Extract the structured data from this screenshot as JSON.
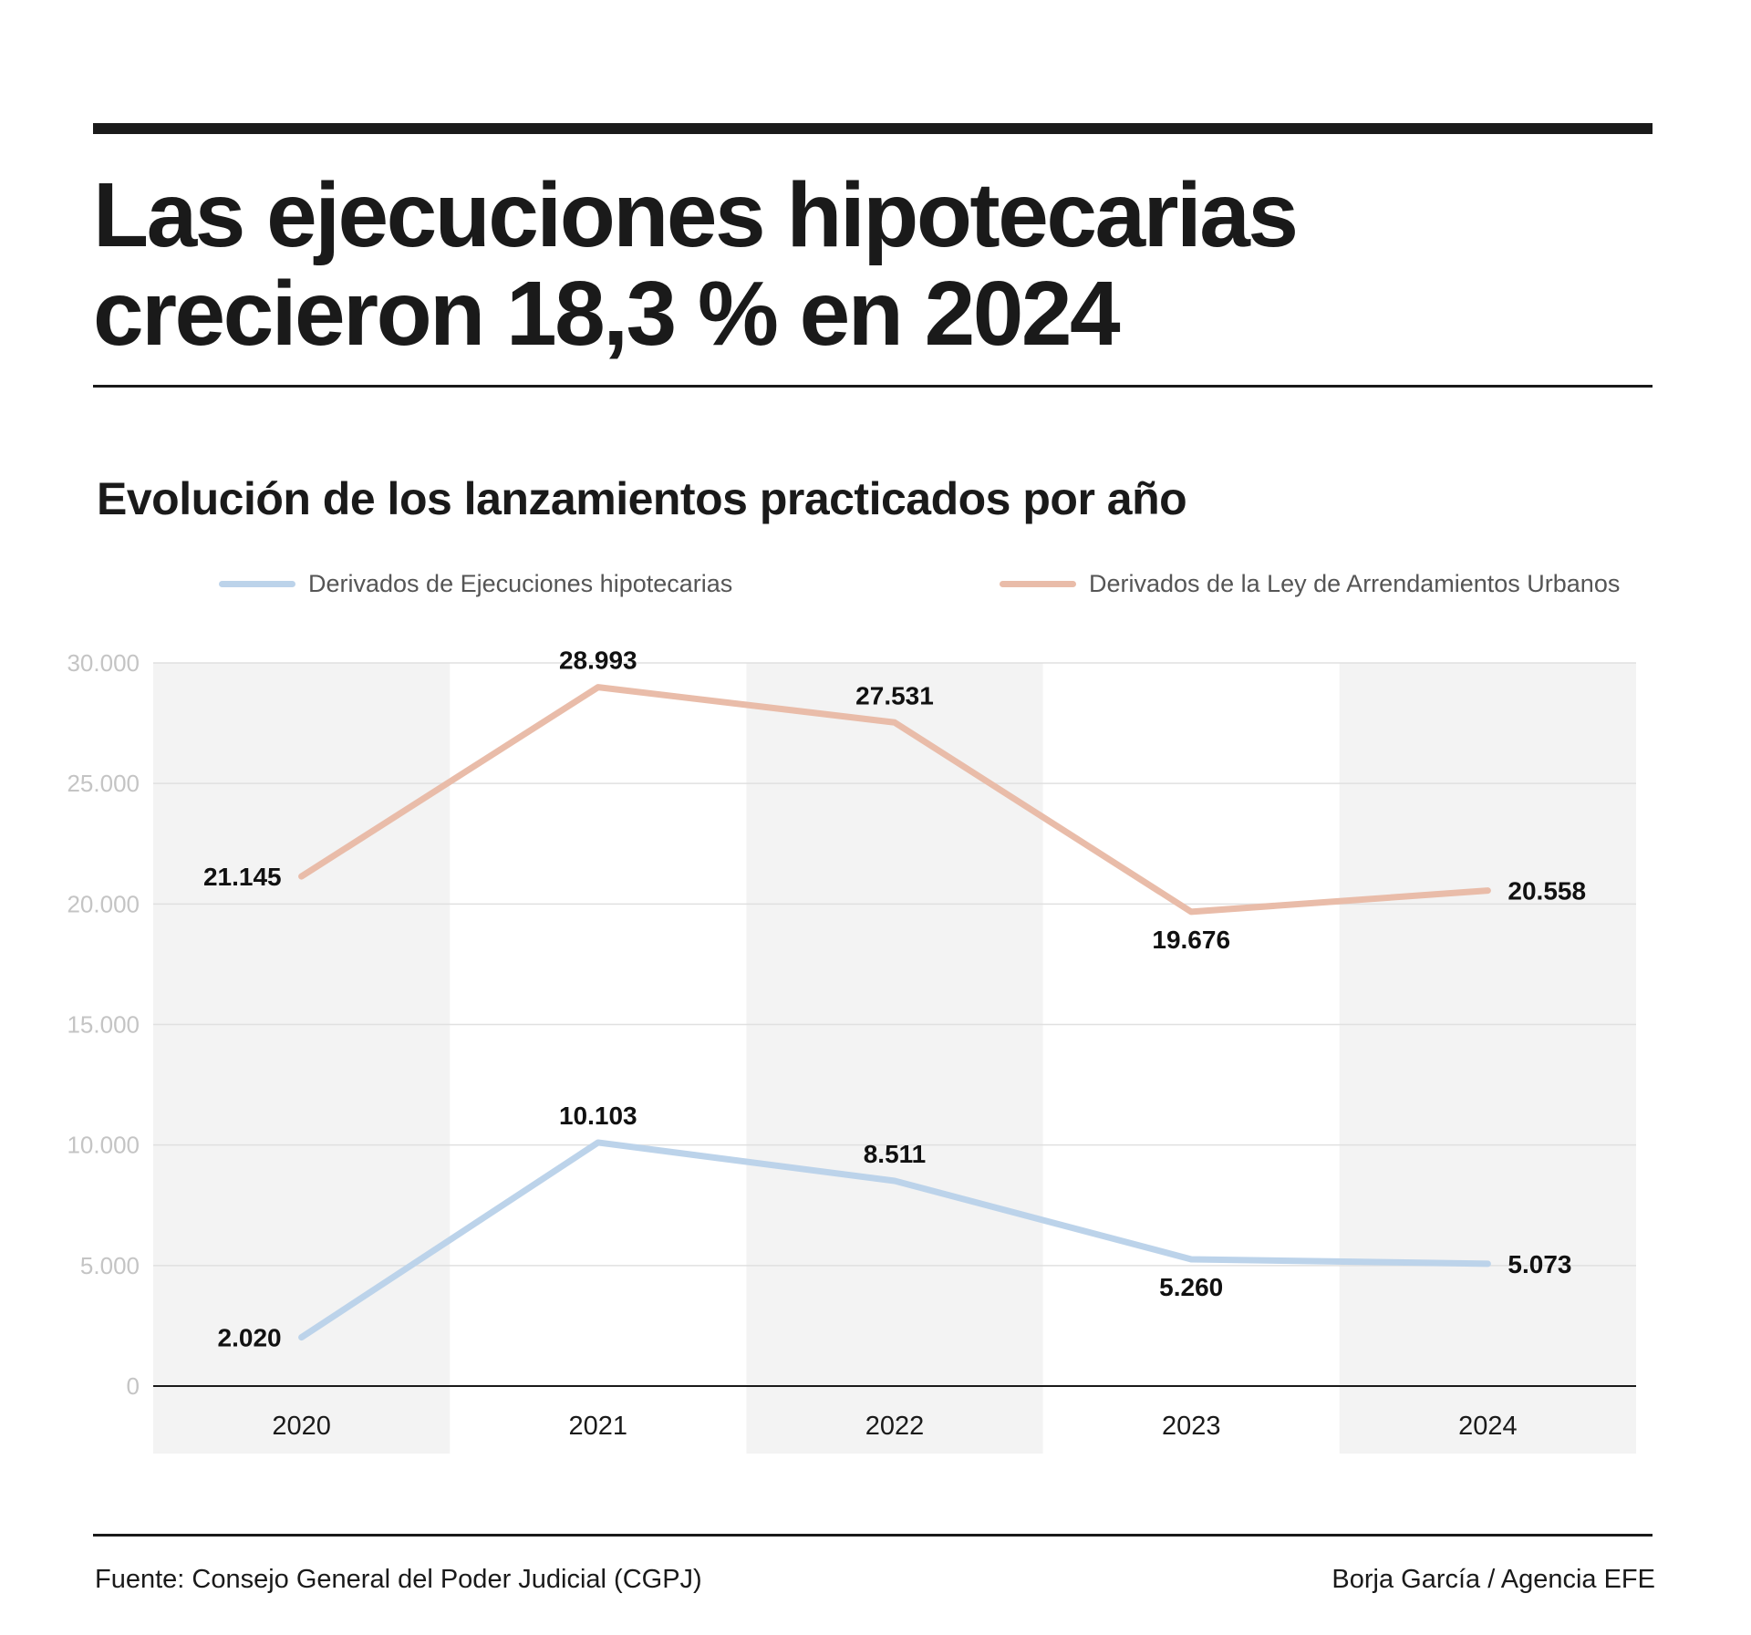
{
  "header": {
    "title_line1": "Las ejecuciones hipotecarias",
    "title_line2": "crecieron 18,3 % en 2024"
  },
  "chart_data": {
    "type": "line",
    "title": "Las ejecuciones hipotecarias crecieron 18,3 % en 2024",
    "subtitle": "Evolución de los lanzamientos practicados por año",
    "xlabel": "",
    "ylabel": "",
    "categories": [
      "2020",
      "2021",
      "2022",
      "2023",
      "2024"
    ],
    "series": [
      {
        "name": "Derivados de Ejecuciones hipotecarias",
        "color": "#bcd3ea",
        "values": [
          2020,
          10103,
          8511,
          5260,
          5073
        ],
        "labels": [
          "2.020",
          "10.103",
          "8.511",
          "5.260",
          "5.073"
        ],
        "label_positions": [
          "left",
          "above",
          "above",
          "below",
          "right"
        ]
      },
      {
        "name": "Derivados de la Ley de Arrendamientos Urbanos",
        "color": "#e9bca9",
        "values": [
          21145,
          28993,
          27531,
          19676,
          20558
        ],
        "labels": [
          "21.145",
          "28.993",
          "27.531",
          "19.676",
          "20.558"
        ],
        "label_positions": [
          "left",
          "above",
          "above",
          "below",
          "right"
        ]
      }
    ],
    "ylim": [
      0,
      30000
    ],
    "yticks": [
      0,
      5000,
      10000,
      15000,
      20000,
      25000,
      30000
    ],
    "ytick_labels": [
      "0",
      "5.000",
      "10.000",
      "15.000",
      "20.000",
      "25.000",
      "30.000"
    ],
    "grid": true,
    "alternating_column_bands": true,
    "legend_position": "top"
  },
  "footer": {
    "source": "Fuente: Consejo General del Poder Judicial (CGPJ)",
    "credit": "Borja García / Agencia EFE"
  },
  "colors": {
    "text": "#1a1a1a",
    "band": "#f3f3f3",
    "grid": "#e0e0e0",
    "axis_labels": "#c4c4c4"
  }
}
